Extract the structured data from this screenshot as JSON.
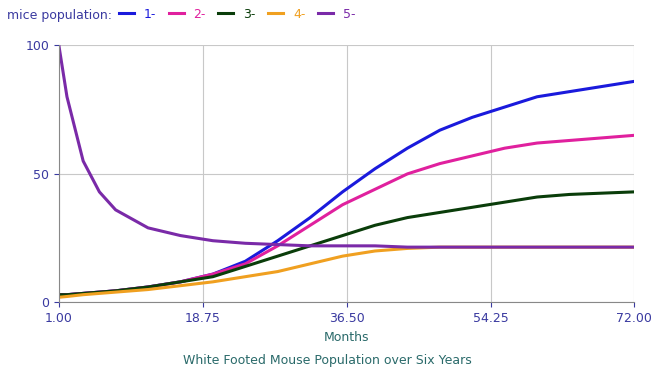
{
  "chart_data": {
    "type": "line",
    "title": "White Footed Mouse Population over Six Years",
    "xlabel": "Months",
    "ylabel": "mice population:",
    "x": [
      1,
      2,
      4,
      6,
      8,
      12,
      16,
      20,
      24,
      28,
      32,
      36,
      40,
      44,
      48,
      52,
      56,
      60,
      64,
      68,
      72
    ],
    "series": [
      {
        "name": "1-",
        "color": "#1a1adc",
        "values": [
          3,
          3,
          3.5,
          4,
          4.5,
          6,
          8,
          11,
          16,
          24,
          33,
          43,
          52,
          60,
          67,
          72,
          76,
          80,
          82,
          84,
          86
        ]
      },
      {
        "name": "2-",
        "color": "#e0209e",
        "values": [
          3,
          3,
          3.5,
          4,
          4.5,
          6,
          8,
          11,
          15,
          22,
          30,
          38,
          44,
          50,
          54,
          57,
          60,
          62,
          63,
          64,
          65
        ]
      },
      {
        "name": "3-",
        "color": "#0a3d0a",
        "values": [
          3,
          3,
          3.5,
          4,
          4.5,
          6,
          8,
          10,
          14,
          18,
          22,
          26,
          30,
          33,
          35,
          37,
          39,
          41,
          42,
          42.5,
          43
        ]
      },
      {
        "name": "4-",
        "color": "#f0a020",
        "values": [
          2,
          2.3,
          3,
          3.5,
          4,
          5,
          6.5,
          8,
          10,
          12,
          15,
          18,
          20,
          21,
          21.5,
          21.5,
          21.5,
          21.5,
          21.5,
          21.5,
          21.5
        ]
      },
      {
        "name": "5-",
        "color": "#7a2aa8",
        "values": [
          100,
          80,
          55,
          43,
          36,
          29,
          26,
          24,
          23,
          22.5,
          22,
          22,
          22,
          21.5,
          21.5,
          21.5,
          21.5,
          21.5,
          21.5,
          21.5,
          21.5
        ]
      }
    ],
    "xlim": [
      1,
      72
    ],
    "xticks": [
      {
        "value": 1,
        "label": "1.00"
      },
      {
        "value": 18.75,
        "label": "18.75"
      },
      {
        "value": 36.5,
        "label": "36.50"
      },
      {
        "value": 54.25,
        "label": "54.25"
      },
      {
        "value": 72,
        "label": "72.00"
      }
    ],
    "ylim": [
      0,
      100
    ],
    "yticks": [
      0,
      50,
      100
    ],
    "grid": true,
    "legend": "upper left"
  }
}
